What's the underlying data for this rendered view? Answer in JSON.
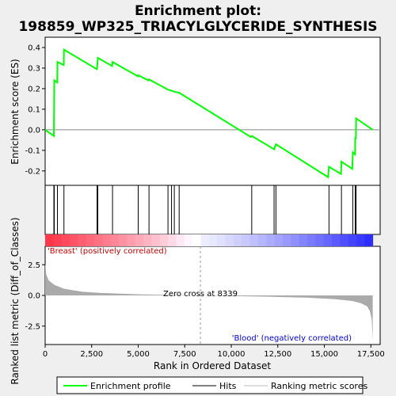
{
  "chart_data": {
    "type": "line",
    "title_line1": "Enrichment plot:",
    "title_line2": "198859_WP325_TRIACYLGLYCERIDE_SYNTHESIS",
    "xlabel": "Rank in Ordered Dataset",
    "ylabel_top": "Enrichment score (ES)",
    "ylabel_bottom": "Ranked list metric (Diff_of_Classes)",
    "x_range": [
      0,
      18000
    ],
    "es_ylim": [
      -0.27,
      0.45
    ],
    "metric_ylim": [
      -4.0,
      4.0
    ],
    "x_ticks": [
      0,
      2500,
      5000,
      7500,
      10000,
      12500,
      15000,
      17500
    ],
    "x_tick_labels": [
      "0",
      "2,500",
      "5,000",
      "7,500",
      "10,000",
      "12,500",
      "15,000",
      "17,500"
    ],
    "es_ticks": [
      -0.2,
      -0.1,
      0.0,
      0.1,
      0.2,
      0.3,
      0.4
    ],
    "es_tick_labels": [
      "-0.2",
      "-0.1",
      "0.0",
      "0.1",
      "0.2",
      "0.3",
      "0.4"
    ],
    "metric_ticks": [
      -2.5,
      0.0,
      2.5
    ],
    "metric_tick_labels": [
      "-2.5",
      "0.0",
      "2.5"
    ],
    "es_curve": [
      [
        0,
        0.0
      ],
      [
        470,
        -0.03
      ],
      [
        480,
        0.1
      ],
      [
        490,
        0.24
      ],
      [
        650,
        0.23
      ],
      [
        660,
        0.33
      ],
      [
        1000,
        0.315
      ],
      [
        1010,
        0.39
      ],
      [
        2780,
        0.295
      ],
      [
        2790,
        0.3
      ],
      [
        2830,
        0.35
      ],
      [
        3600,
        0.31
      ],
      [
        3620,
        0.33
      ],
      [
        4980,
        0.26
      ],
      [
        5000,
        0.265
      ],
      [
        5550,
        0.24
      ],
      [
        5580,
        0.245
      ],
      [
        6600,
        0.195
      ],
      [
        6790,
        0.19
      ],
      [
        6940,
        0.185
      ],
      [
        7200,
        0.18
      ],
      [
        11050,
        -0.035
      ],
      [
        11100,
        -0.03
      ],
      [
        12300,
        -0.095
      ],
      [
        12400,
        -0.07
      ],
      [
        15200,
        -0.23
      ],
      [
        15250,
        -0.18
      ],
      [
        15900,
        -0.215
      ],
      [
        15920,
        -0.155
      ],
      [
        16500,
        -0.19
      ],
      [
        16530,
        -0.11
      ],
      [
        16650,
        -0.12
      ],
      [
        16660,
        -0.04
      ],
      [
        16700,
        -0.04
      ],
      [
        16710,
        0.055
      ],
      [
        17600,
        0.0
      ]
    ],
    "hits": [
      470,
      490,
      660,
      1010,
      2790,
      2830,
      3620,
      5000,
      5580,
      6600,
      6790,
      6940,
      7200,
      11100,
      12300,
      12400,
      15250,
      15920,
      16530,
      16660,
      16710
    ],
    "metric_curve": [
      [
        0,
        2.6
      ],
      [
        60,
        1.7
      ],
      [
        200,
        1.2
      ],
      [
        500,
        0.85
      ],
      [
        1000,
        0.55
      ],
      [
        2000,
        0.3
      ],
      [
        3000,
        0.2
      ],
      [
        5000,
        0.09
      ],
      [
        7000,
        0.03
      ],
      [
        8339,
        0.0
      ],
      [
        10000,
        -0.05
      ],
      [
        12000,
        -0.1
      ],
      [
        14000,
        -0.18
      ],
      [
        15500,
        -0.3
      ],
      [
        16500,
        -0.45
      ],
      [
        17000,
        -0.65
      ],
      [
        17300,
        -0.9
      ],
      [
        17450,
        -1.3
      ],
      [
        17550,
        -2.0
      ],
      [
        17600,
        -3.7
      ]
    ],
    "zero_cross_rank": 8339,
    "zero_cross_label": "Zero cross at 8339",
    "pos_label": "'Breast' (positively correlated)",
    "neg_label": "'Blood' (negatively correlated)",
    "total_rank": 17600,
    "legend": [
      "Enrichment profile",
      "Hits",
      "Ranking metric scores"
    ],
    "colors": {
      "es_line": "#00ff00",
      "hit": "#000000",
      "metric_fill": "#aaaaaa",
      "pos_text": "#cc0000",
      "neg_text": "#0000cc",
      "zero_line": "#999999"
    }
  }
}
